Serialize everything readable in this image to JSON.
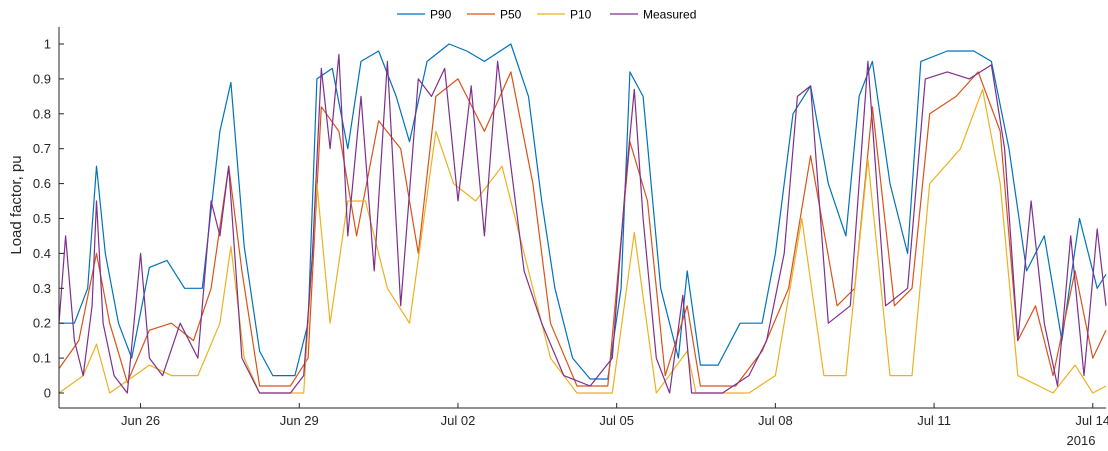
{
  "chart_data": {
    "type": "line",
    "title": "",
    "xlabel": "",
    "ylabel": "Load factor, pu",
    "x_ticks": [
      {
        "date": "2016-06-26",
        "label": "Jun 26"
      },
      {
        "date": "2016-06-29",
        "label": "Jun 29"
      },
      {
        "date": "2016-07-02",
        "label": "Jul 02"
      },
      {
        "date": "2016-07-05",
        "label": "Jul 05"
      },
      {
        "date": "2016-07-08",
        "label": "Jul 08"
      },
      {
        "date": "2016-07-11",
        "label": "Jul 11"
      },
      {
        "date": "2016-07-14",
        "label": "Jul 14"
      }
    ],
    "x_year_label": "2016",
    "xlim": [
      "2016-06-24T11:00",
      "2016-07-14T06:00"
    ],
    "ylim": [
      0,
      1.05
    ],
    "y_ticks": [
      0,
      0.1,
      0.2,
      0.3,
      0.4,
      0.5,
      0.6,
      0.7,
      0.8,
      0.9,
      1
    ],
    "y_tick_labels": [
      "0",
      "0.1",
      "0.2",
      "0.3",
      "0.4",
      "0.5",
      "0.6",
      "0.7",
      "0.8",
      "0.9",
      "1"
    ],
    "grid": false,
    "legend_placement": "top",
    "series": [
      {
        "name": "P90",
        "color": "#0072BD",
        "points": [
          [
            "2016-06-24T11:00",
            0.2
          ],
          [
            "2016-06-24T18:00",
            0.2
          ],
          [
            "2016-06-25T00:00",
            0.3
          ],
          [
            "2016-06-25T04:00",
            0.65
          ],
          [
            "2016-06-25T08:00",
            0.4
          ],
          [
            "2016-06-25T14:00",
            0.2
          ],
          [
            "2016-06-25T20:00",
            0.1
          ],
          [
            "2016-06-26T04:00",
            0.36
          ],
          [
            "2016-06-26T12:00",
            0.38
          ],
          [
            "2016-06-26T20:00",
            0.3
          ],
          [
            "2016-06-27T04:00",
            0.3
          ],
          [
            "2016-06-27T12:00",
            0.75
          ],
          [
            "2016-06-27T17:00",
            0.89
          ],
          [
            "2016-06-27T23:00",
            0.42
          ],
          [
            "2016-06-28T06:00",
            0.12
          ],
          [
            "2016-06-28T12:00",
            0.05
          ],
          [
            "2016-06-28T22:00",
            0.05
          ],
          [
            "2016-06-29T04:00",
            0.2
          ],
          [
            "2016-06-29T08:00",
            0.9
          ],
          [
            "2016-06-29T15:00",
            0.93
          ],
          [
            "2016-06-29T22:00",
            0.7
          ],
          [
            "2016-06-30T04:00",
            0.95
          ],
          [
            "2016-06-30T12:00",
            0.98
          ],
          [
            "2016-06-30T20:00",
            0.85
          ],
          [
            "2016-07-01T02:00",
            0.72
          ],
          [
            "2016-07-01T10:00",
            0.95
          ],
          [
            "2016-07-01T20:00",
            1.0
          ],
          [
            "2016-07-02T04:00",
            0.98
          ],
          [
            "2016-07-02T12:00",
            0.95
          ],
          [
            "2016-07-03T00:00",
            1.0
          ],
          [
            "2016-07-03T08:00",
            0.85
          ],
          [
            "2016-07-03T14:00",
            0.55
          ],
          [
            "2016-07-03T20:00",
            0.3
          ],
          [
            "2016-07-04T04:00",
            0.1
          ],
          [
            "2016-07-04T12:00",
            0.04
          ],
          [
            "2016-07-04T20:00",
            0.04
          ],
          [
            "2016-07-05T02:00",
            0.3
          ],
          [
            "2016-07-05T06:00",
            0.92
          ],
          [
            "2016-07-05T12:00",
            0.85
          ],
          [
            "2016-07-05T20:00",
            0.3
          ],
          [
            "2016-07-06T04:00",
            0.1
          ],
          [
            "2016-07-06T08:00",
            0.35
          ],
          [
            "2016-07-06T14:00",
            0.08
          ],
          [
            "2016-07-06T22:00",
            0.08
          ],
          [
            "2016-07-07T08:00",
            0.2
          ],
          [
            "2016-07-07T18:00",
            0.2
          ],
          [
            "2016-07-08T00:00",
            0.4
          ],
          [
            "2016-07-08T08:00",
            0.8
          ],
          [
            "2016-07-08T16:00",
            0.88
          ],
          [
            "2016-07-09T00:00",
            0.6
          ],
          [
            "2016-07-09T08:00",
            0.45
          ],
          [
            "2016-07-09T14:00",
            0.85
          ],
          [
            "2016-07-09T20:00",
            0.95
          ],
          [
            "2016-07-10T04:00",
            0.6
          ],
          [
            "2016-07-10T12:00",
            0.4
          ],
          [
            "2016-07-10T18:00",
            0.95
          ],
          [
            "2016-07-11T06:00",
            0.98
          ],
          [
            "2016-07-11T18:00",
            0.98
          ],
          [
            "2016-07-12T02:00",
            0.95
          ],
          [
            "2016-07-12T10:00",
            0.7
          ],
          [
            "2016-07-12T18:00",
            0.35
          ],
          [
            "2016-07-13T02:00",
            0.45
          ],
          [
            "2016-07-13T10:00",
            0.15
          ],
          [
            "2016-07-13T18:00",
            0.5
          ],
          [
            "2016-07-14T02:00",
            0.3
          ],
          [
            "2016-07-14T06:00",
            0.34
          ]
        ]
      },
      {
        "name": "P50",
        "color": "#D95319",
        "points": [
          [
            "2016-06-24T11:00",
            0.07
          ],
          [
            "2016-06-24T20:00",
            0.15
          ],
          [
            "2016-06-25T04:00",
            0.4
          ],
          [
            "2016-06-25T10:00",
            0.2
          ],
          [
            "2016-06-25T18:00",
            0.03
          ],
          [
            "2016-06-26T04:00",
            0.18
          ],
          [
            "2016-06-26T14:00",
            0.2
          ],
          [
            "2016-06-27T00:00",
            0.15
          ],
          [
            "2016-06-27T08:00",
            0.3
          ],
          [
            "2016-06-27T16:00",
            0.65
          ],
          [
            "2016-06-27T22:00",
            0.35
          ],
          [
            "2016-06-28T06:00",
            0.02
          ],
          [
            "2016-06-28T20:00",
            0.02
          ],
          [
            "2016-06-29T04:00",
            0.1
          ],
          [
            "2016-06-29T10:00",
            0.82
          ],
          [
            "2016-06-29T18:00",
            0.75
          ],
          [
            "2016-06-30T02:00",
            0.45
          ],
          [
            "2016-06-30T12:00",
            0.78
          ],
          [
            "2016-06-30T22:00",
            0.7
          ],
          [
            "2016-07-01T06:00",
            0.4
          ],
          [
            "2016-07-01T14:00",
            0.85
          ],
          [
            "2016-07-02T00:00",
            0.9
          ],
          [
            "2016-07-02T12:00",
            0.75
          ],
          [
            "2016-07-03T00:00",
            0.92
          ],
          [
            "2016-07-03T10:00",
            0.6
          ],
          [
            "2016-07-03T18:00",
            0.2
          ],
          [
            "2016-07-04T06:00",
            0.02
          ],
          [
            "2016-07-04T20:00",
            0.02
          ],
          [
            "2016-07-05T06:00",
            0.72
          ],
          [
            "2016-07-05T14:00",
            0.55
          ],
          [
            "2016-07-05T22:00",
            0.05
          ],
          [
            "2016-07-06T08:00",
            0.25
          ],
          [
            "2016-07-06T14:00",
            0.02
          ],
          [
            "2016-07-07T06:00",
            0.02
          ],
          [
            "2016-07-07T18:00",
            0.12
          ],
          [
            "2016-07-08T06:00",
            0.3
          ],
          [
            "2016-07-08T16:00",
            0.68
          ],
          [
            "2016-07-09T04:00",
            0.25
          ],
          [
            "2016-07-09T12:00",
            0.3
          ],
          [
            "2016-07-09T20:00",
            0.82
          ],
          [
            "2016-07-10T06:00",
            0.25
          ],
          [
            "2016-07-10T14:00",
            0.3
          ],
          [
            "2016-07-10T22:00",
            0.8
          ],
          [
            "2016-07-11T10:00",
            0.85
          ],
          [
            "2016-07-11T20:00",
            0.92
          ],
          [
            "2016-07-12T06:00",
            0.75
          ],
          [
            "2016-07-12T14:00",
            0.15
          ],
          [
            "2016-07-12T22:00",
            0.25
          ],
          [
            "2016-07-13T06:00",
            0.05
          ],
          [
            "2016-07-13T16:00",
            0.35
          ],
          [
            "2016-07-14T00:00",
            0.1
          ],
          [
            "2016-07-14T06:00",
            0.18
          ]
        ]
      },
      {
        "name": "P10",
        "color": "#EDB120",
        "points": [
          [
            "2016-06-24T11:00",
            0.0
          ],
          [
            "2016-06-24T22:00",
            0.05
          ],
          [
            "2016-06-25T04:00",
            0.14
          ],
          [
            "2016-06-25T10:00",
            0.0
          ],
          [
            "2016-06-26T04:00",
            0.08
          ],
          [
            "2016-06-26T14:00",
            0.05
          ],
          [
            "2016-06-27T02:00",
            0.05
          ],
          [
            "2016-06-27T12:00",
            0.2
          ],
          [
            "2016-06-27T17:00",
            0.42
          ],
          [
            "2016-06-27T23:00",
            0.1
          ],
          [
            "2016-06-28T06:00",
            0.0
          ],
          [
            "2016-06-29T02:00",
            0.0
          ],
          [
            "2016-06-29T08:00",
            0.6
          ],
          [
            "2016-06-29T14:00",
            0.2
          ],
          [
            "2016-06-29T22:00",
            0.55
          ],
          [
            "2016-06-30T06:00",
            0.55
          ],
          [
            "2016-06-30T16:00",
            0.3
          ],
          [
            "2016-07-01T02:00",
            0.2
          ],
          [
            "2016-07-01T14:00",
            0.75
          ],
          [
            "2016-07-01T22:00",
            0.6
          ],
          [
            "2016-07-02T08:00",
            0.55
          ],
          [
            "2016-07-02T20:00",
            0.65
          ],
          [
            "2016-07-03T06:00",
            0.4
          ],
          [
            "2016-07-03T18:00",
            0.1
          ],
          [
            "2016-07-04T06:00",
            0.0
          ],
          [
            "2016-07-04T22:00",
            0.0
          ],
          [
            "2016-07-05T08:00",
            0.46
          ],
          [
            "2016-07-05T18:00",
            0.0
          ],
          [
            "2016-07-06T08:00",
            0.12
          ],
          [
            "2016-07-06T12:00",
            0.0
          ],
          [
            "2016-07-07T12:00",
            0.0
          ],
          [
            "2016-07-08T00:00",
            0.05
          ],
          [
            "2016-07-08T12:00",
            0.5
          ],
          [
            "2016-07-08T22:00",
            0.05
          ],
          [
            "2016-07-09T08:00",
            0.05
          ],
          [
            "2016-07-09T18:00",
            0.67
          ],
          [
            "2016-07-10T04:00",
            0.05
          ],
          [
            "2016-07-10T14:00",
            0.05
          ],
          [
            "2016-07-10T22:00",
            0.6
          ],
          [
            "2016-07-11T12:00",
            0.7
          ],
          [
            "2016-07-11T22:00",
            0.87
          ],
          [
            "2016-07-12T06:00",
            0.6
          ],
          [
            "2016-07-12T14:00",
            0.05
          ],
          [
            "2016-07-13T06:00",
            0.0
          ],
          [
            "2016-07-13T16:00",
            0.08
          ],
          [
            "2016-07-14T00:00",
            0.0
          ],
          [
            "2016-07-14T06:00",
            0.02
          ]
        ]
      },
      {
        "name": "Measured",
        "color": "#7E2F8E",
        "points": [
          [
            "2016-06-24T11:00",
            0.2
          ],
          [
            "2016-06-24T14:00",
            0.45
          ],
          [
            "2016-06-24T18:00",
            0.15
          ],
          [
            "2016-06-24T22:00",
            0.05
          ],
          [
            "2016-06-25T02:00",
            0.25
          ],
          [
            "2016-06-25T04:00",
            0.55
          ],
          [
            "2016-06-25T07:00",
            0.2
          ],
          [
            "2016-06-25T12:00",
            0.05
          ],
          [
            "2016-06-25T18:00",
            0.0
          ],
          [
            "2016-06-26T00:00",
            0.4
          ],
          [
            "2016-06-26T04:00",
            0.1
          ],
          [
            "2016-06-26T10:00",
            0.05
          ],
          [
            "2016-06-26T18:00",
            0.2
          ],
          [
            "2016-06-27T02:00",
            0.1
          ],
          [
            "2016-06-27T08:00",
            0.55
          ],
          [
            "2016-06-27T12:00",
            0.45
          ],
          [
            "2016-06-27T16:00",
            0.65
          ],
          [
            "2016-06-27T22:00",
            0.1
          ],
          [
            "2016-06-28T06:00",
            0.0
          ],
          [
            "2016-06-28T20:00",
            0.0
          ],
          [
            "2016-06-29T02:00",
            0.05
          ],
          [
            "2016-06-29T06:00",
            0.4
          ],
          [
            "2016-06-29T10:00",
            0.93
          ],
          [
            "2016-06-29T14:00",
            0.7
          ],
          [
            "2016-06-29T18:00",
            0.97
          ],
          [
            "2016-06-29T22:00",
            0.45
          ],
          [
            "2016-06-30T04:00",
            0.85
          ],
          [
            "2016-06-30T10:00",
            0.35
          ],
          [
            "2016-06-30T16:00",
            0.95
          ],
          [
            "2016-06-30T22:00",
            0.25
          ],
          [
            "2016-07-01T06:00",
            0.9
          ],
          [
            "2016-07-01T12:00",
            0.85
          ],
          [
            "2016-07-01T18:00",
            0.93
          ],
          [
            "2016-07-02T00:00",
            0.55
          ],
          [
            "2016-07-02T06:00",
            0.88
          ],
          [
            "2016-07-02T12:00",
            0.45
          ],
          [
            "2016-07-02T18:00",
            0.95
          ],
          [
            "2016-07-03T00:00",
            0.65
          ],
          [
            "2016-07-03T06:00",
            0.35
          ],
          [
            "2016-07-03T14:00",
            0.2
          ],
          [
            "2016-07-04T00:00",
            0.05
          ],
          [
            "2016-07-04T12:00",
            0.02
          ],
          [
            "2016-07-04T22:00",
            0.1
          ],
          [
            "2016-07-05T04:00",
            0.6
          ],
          [
            "2016-07-05T08:00",
            0.87
          ],
          [
            "2016-07-05T12:00",
            0.5
          ],
          [
            "2016-07-05T18:00",
            0.1
          ],
          [
            "2016-07-06T00:00",
            0.0
          ],
          [
            "2016-07-06T06:00",
            0.28
          ],
          [
            "2016-07-06T10:00",
            0.0
          ],
          [
            "2016-07-07T00:00",
            0.0
          ],
          [
            "2016-07-07T12:00",
            0.05
          ],
          [
            "2016-07-07T20:00",
            0.15
          ],
          [
            "2016-07-08T04:00",
            0.4
          ],
          [
            "2016-07-08T10:00",
            0.85
          ],
          [
            "2016-07-08T16:00",
            0.88
          ],
          [
            "2016-07-09T00:00",
            0.2
          ],
          [
            "2016-07-09T10:00",
            0.25
          ],
          [
            "2016-07-09T18:00",
            0.95
          ],
          [
            "2016-07-10T02:00",
            0.25
          ],
          [
            "2016-07-10T12:00",
            0.3
          ],
          [
            "2016-07-10T20:00",
            0.9
          ],
          [
            "2016-07-11T06:00",
            0.92
          ],
          [
            "2016-07-11T16:00",
            0.9
          ],
          [
            "2016-07-12T02:00",
            0.94
          ],
          [
            "2016-07-12T08:00",
            0.7
          ],
          [
            "2016-07-12T14:00",
            0.15
          ],
          [
            "2016-07-12T20:00",
            0.55
          ],
          [
            "2016-07-13T02:00",
            0.2
          ],
          [
            "2016-07-13T08:00",
            0.02
          ],
          [
            "2016-07-13T14:00",
            0.45
          ],
          [
            "2016-07-13T20:00",
            0.05
          ],
          [
            "2016-07-14T02:00",
            0.47
          ],
          [
            "2016-07-14T06:00",
            0.25
          ]
        ]
      }
    ]
  }
}
